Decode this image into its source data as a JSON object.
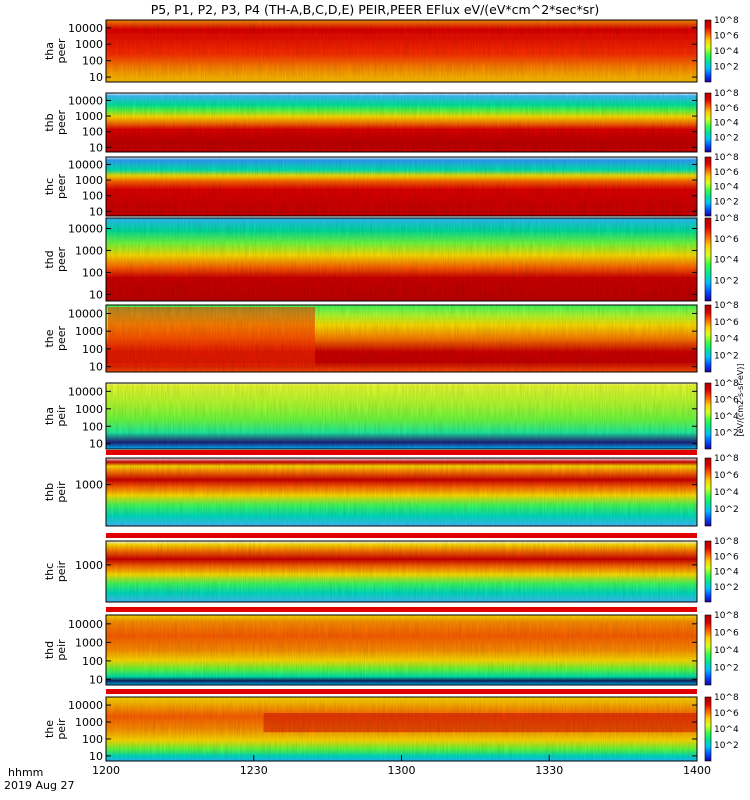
{
  "chart_data": {
    "type": "heatmap",
    "title": "P5, P1, P2, P3, P4 (TH-A,B,C,D,E) PEIR,PEER EFlux eV/(eV*cm^2*sec*sr)",
    "x_unit_label": "hhmm",
    "date_label": "2019 Aug 27",
    "x_ticks": [
      "1200",
      "1230",
      "1300",
      "1330",
      "1400"
    ],
    "xlim": [
      0,
      120
    ],
    "colorbar_label": "[eV/(cm2-s-sr-eV)]",
    "colorbar_ticks": [
      "10^2",
      "10^4",
      "10^6",
      "10^8"
    ],
    "colorbar_range": [
      0,
      8
    ],
    "colormap": [
      "#1a00a0",
      "#0050ff",
      "#00c0ff",
      "#00e890",
      "#40ff40",
      "#d8ff20",
      "#ffd000",
      "#ff6000",
      "#e00000",
      "#b00000"
    ],
    "panels": [
      {
        "probe": "tha",
        "species": "peer",
        "y_ticks": [
          "10",
          "100",
          "1000",
          "10000"
        ],
        "ylim": [
          5,
          30000
        ],
        "ylog": true
      },
      {
        "probe": "thb",
        "species": "peer",
        "y_ticks": [
          "10",
          "100",
          "1000",
          "10000"
        ],
        "ylim": [
          5,
          30000
        ],
        "ylog": true
      },
      {
        "probe": "thc",
        "species": "peer",
        "y_ticks": [
          "10",
          "100",
          "1000",
          "10000"
        ],
        "ylim": [
          5,
          30000
        ],
        "ylog": true
      },
      {
        "probe": "thd",
        "species": "peer",
        "y_ticks": [
          "10",
          "100",
          "1000",
          "10000"
        ],
        "ylim": [
          5,
          30000
        ],
        "ylog": true
      },
      {
        "probe": "the",
        "species": "peer",
        "y_ticks": [
          "10",
          "100",
          "1000",
          "10000"
        ],
        "ylim": [
          5,
          30000
        ],
        "ylog": true
      },
      {
        "probe": "tha",
        "species": "peir",
        "y_ticks": [
          "10",
          "100",
          "1000",
          "10000"
        ],
        "ylim": [
          5,
          30000
        ],
        "ylog": true
      },
      {
        "probe": "thb",
        "species": "peir",
        "y_ticks": [
          "1000"
        ],
        "ylim": [
          5,
          30000
        ],
        "ylog": true
      },
      {
        "probe": "thc",
        "species": "peir",
        "y_ticks": [
          "1000"
        ],
        "ylim": [
          5,
          30000
        ],
        "ylog": true
      },
      {
        "probe": "thd",
        "species": "peir",
        "y_ticks": [
          "10",
          "100",
          "1000",
          "10000"
        ],
        "ylim": [
          5,
          30000
        ],
        "ylog": true
      },
      {
        "probe": "the",
        "species": "peir",
        "y_ticks": [
          "10",
          "100",
          "1000",
          "10000"
        ],
        "ylim": [
          5,
          30000
        ],
        "ylog": true
      }
    ]
  }
}
